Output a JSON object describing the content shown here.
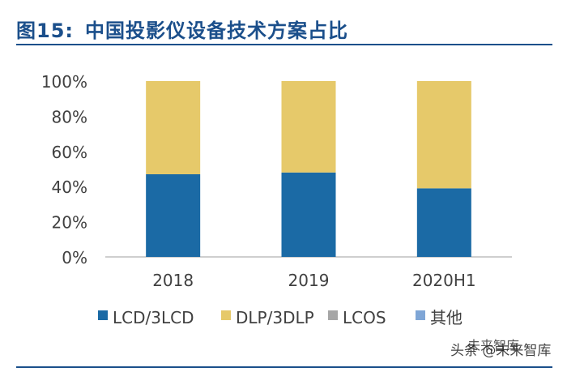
{
  "header": {
    "figure_label": "图15:",
    "figure_title": "中国投影仪设备技术方案占比"
  },
  "chart_data": {
    "type": "bar",
    "stacked": true,
    "categories": [
      "2018",
      "2019",
      "2020H1"
    ],
    "series": [
      {
        "name": "LCD/3LCD",
        "color": "#1b6aa5",
        "values": [
          47,
          48,
          39
        ]
      },
      {
        "name": "DLP/3DLP",
        "color": "#e6c96a",
        "values": [
          53,
          52,
          61
        ]
      },
      {
        "name": "LCOS",
        "color": "#a6a6a6",
        "values": [
          0,
          0,
          0
        ]
      },
      {
        "name": "其他",
        "color": "#7fa6d6",
        "values": [
          0,
          0,
          0
        ]
      }
    ],
    "ylim": [
      0,
      100
    ],
    "yticks": [
      0,
      20,
      40,
      60,
      80,
      100
    ],
    "ytick_labels": [
      "0%",
      "20%",
      "40%",
      "60%",
      "80%",
      "100%"
    ],
    "legend_position": "bottom",
    "grid": false
  },
  "watermark": {
    "text": "头条 @未来智库",
    "logo_text": "未来智库"
  }
}
